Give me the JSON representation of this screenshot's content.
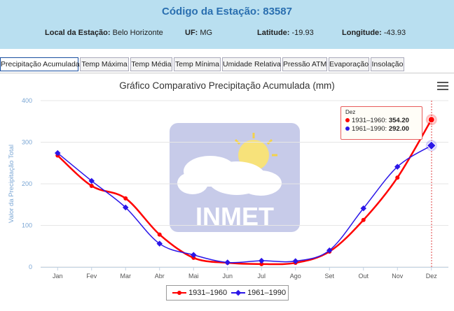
{
  "header": {
    "title": "Código da Estação: 83587",
    "local_label": "Local da Estação:",
    "local_value": "Belo Horizonte",
    "uf_label": "UF:",
    "uf_value": "MG",
    "lat_label": "Latitude:",
    "lat_value": "-19.93",
    "lon_label": "Longitude:",
    "lon_value": "-43.93"
  },
  "tabs": [
    {
      "label": "Precipitação Acumulada",
      "active": true
    },
    {
      "label": "Temp Máxima"
    },
    {
      "label": "Temp Média"
    },
    {
      "label": "Temp Mínima"
    },
    {
      "label": "Umidade Relativa"
    },
    {
      "label": "Pressão ATM"
    },
    {
      "label": "Evaporação"
    },
    {
      "label": "Insolação"
    }
  ],
  "icons": {
    "menu": "hamburger-menu-icon",
    "logo": "inmet-logo"
  },
  "logo_text": "INMET",
  "colors": {
    "series1": "#ff0000",
    "series2": "#2b16e8",
    "header_bg": "#b9dff0",
    "title": "#2a6fb0"
  },
  "tooltip": {
    "month": "Dez",
    "rows": [
      {
        "label": "1931–1960:",
        "value": "354.20"
      },
      {
        "label": "1961–1990:",
        "value": "292.00"
      }
    ]
  },
  "chart_data": {
    "type": "line",
    "title": "Gráfico Comparativo Precipitação Acumulada (mm)",
    "ylabel": "Valor da Precipitação Total",
    "xlabel": "",
    "ylim": [
      0,
      400
    ],
    "yticks": [
      0,
      100,
      200,
      300,
      400
    ],
    "categories": [
      "Jan",
      "Fev",
      "Mar",
      "Abr",
      "Mai",
      "Jun",
      "Jul",
      "Ago",
      "Set",
      "Out",
      "Nov",
      "Dez"
    ],
    "series": [
      {
        "name": "1931–1960",
        "values": [
          268,
          195,
          165,
          78,
          22,
          10,
          7,
          10,
          37,
          113,
          215,
          354.2
        ]
      },
      {
        "name": "1961–1990",
        "values": [
          274,
          207,
          143,
          56,
          29,
          11,
          15,
          14,
          40,
          141,
          241,
          292.0
        ]
      }
    ],
    "grid": true,
    "legend_position": "bottom-center",
    "highlight_category": "Dez"
  }
}
